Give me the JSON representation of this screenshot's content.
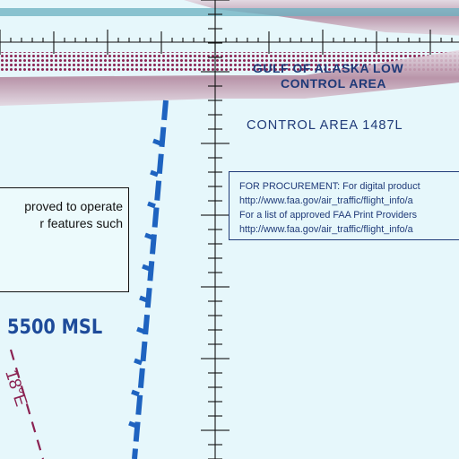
{
  "airspace": {
    "area_name_line1": "GULF OF ALASKA LOW",
    "area_name_line2": "CONTROL AREA",
    "control_area": "CONTROL AREA 1487L",
    "altitude": "5500 MSL",
    "isogonic": "18°E"
  },
  "notice_box": {
    "line1": "proved to operate",
    "line2": "r features such"
  },
  "procurement_box": {
    "line1": "FOR PROCUREMENT:  For digital product",
    "line2": "http://www.faa.gov/air_traffic/flight_info/a",
    "line3": "For a list of approved FAA Print Providers",
    "line4": "http://www.faa.gov/air_traffic/flight_info/a"
  },
  "colors": {
    "background": "#e6f7fb",
    "airspace_band": "#b68aa0",
    "maroon_dots": "#8b2252",
    "isogonic_line": "#8b2252",
    "boundary_blue": "#1e63c0",
    "text_blue": "#1f3a78",
    "top_cyan": "#6ab0c0"
  }
}
